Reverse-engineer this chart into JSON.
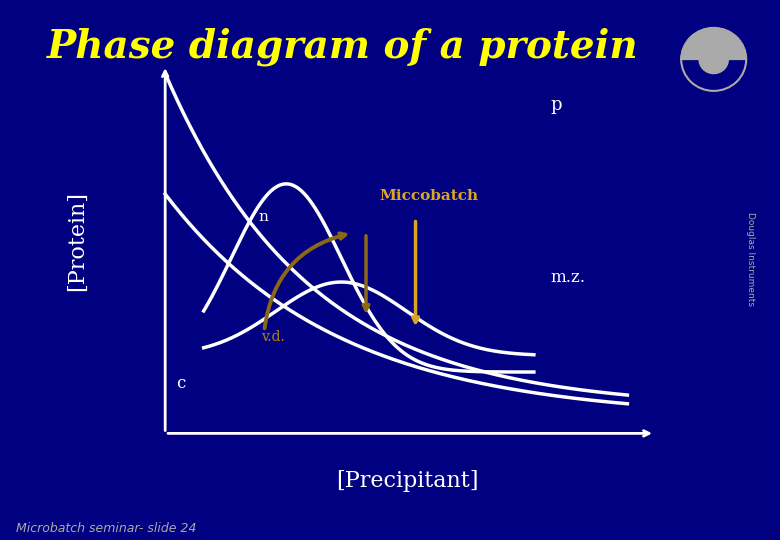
{
  "title": "Phase diagram of a protein",
  "title_color": "#FFFF00",
  "title_fontsize": 28,
  "bg_color": "#000080",
  "axis_color": "#FFFFFF",
  "curve_color": "#FFFFFF",
  "curve_lw": 2.5,
  "xlabel": "[Precipitant]",
  "ylabel": "[Protein]",
  "label_color": "#FFFFFF",
  "label_fontsize": 16,
  "label_p": "p",
  "label_n": "n",
  "label_mz": "m.z.",
  "label_mz_color": "#FFFFFF",
  "label_c": "c",
  "label_vd": "v.d.",
  "label_vd_color": "#B8860B",
  "label_microbatch": "Miccobatch",
  "label_microbatch_color": "#DAA520",
  "arrow_brown_color": "#8B6914",
  "arrow_yellow_color": "#DAA520",
  "footer": "Microbatch seminar- slide 24",
  "footer_color": "#AAAAAA",
  "footer_fontsize": 9,
  "logo_color": "#AAAAAA",
  "di_text": "Douglas Instruments"
}
